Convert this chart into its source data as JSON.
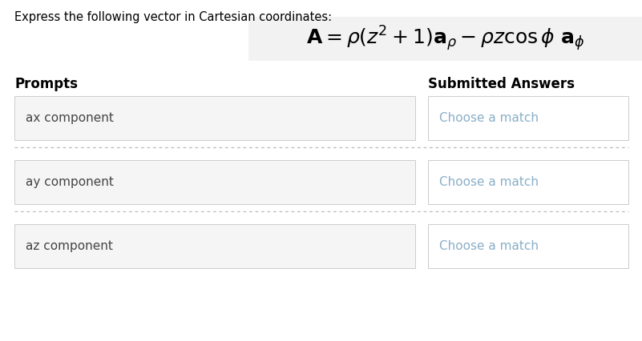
{
  "bg_color": "#ffffff",
  "header_text": "Express the following vector in Cartesian coordinates:",
  "formula": "$\\mathbf{A} = \\rho(z^2 + 1)\\mathbf{a}_{\\rho} - \\rho z \\cos \\phi\\ \\mathbf{a}_{\\phi}$",
  "formula_box_color": "#f2f2f2",
  "prompts_label": "Prompts",
  "answers_label": "Submitted Answers",
  "prompts": [
    "ax component",
    "ay component",
    "az component"
  ],
  "answer_placeholder": "Choose a match",
  "prompt_box_color": "#f5f5f5",
  "answer_box_color": "#ffffff",
  "prompt_text_color": "#444444",
  "answer_text_color": "#8aafc8",
  "label_color": "#000000",
  "dashed_line_color": "#bbbbbb",
  "border_color": "#cccccc",
  "header_fontsize": 10.5,
  "formula_fontsize": 18,
  "label_fontsize": 12,
  "prompt_fontsize": 11,
  "answer_fontsize": 11
}
